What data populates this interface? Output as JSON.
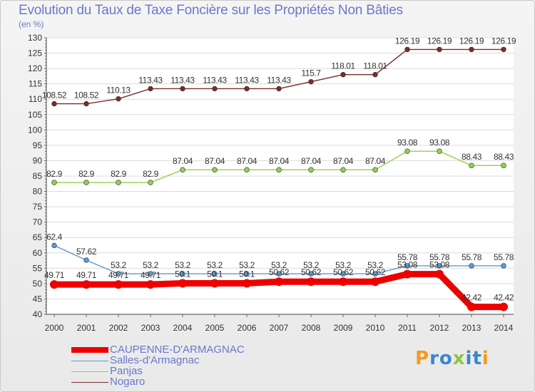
{
  "header": {
    "title": "Evolution du Taux de Taxe Foncière sur les Propriétés Non Bâties",
    "unit": "(en %)"
  },
  "logo": {
    "text": "Proxiti"
  },
  "chart_data": {
    "type": "line",
    "title": "Evolution du Taux de Taxe Foncière sur les Propriétés Non Bâties",
    "ylabel": "(en %)",
    "xlabel": "",
    "ylim": [
      40,
      130
    ],
    "ytick_step": 5,
    "x": [
      "2000",
      "2001",
      "2002",
      "2003",
      "2004",
      "2005",
      "2006",
      "2007",
      "2008",
      "2009",
      "2010",
      "2011",
      "2012",
      "2013",
      "2014"
    ],
    "series": [
      {
        "name": "CAUPENNE-D'ARMAGNAC",
        "color": "#ee0000",
        "values": [
          49.71,
          49.71,
          49.71,
          49.71,
          50.1,
          50.1,
          50.1,
          50.62,
          50.62,
          50.62,
          50.62,
          53.08,
          53.08,
          42.42,
          42.42
        ],
        "labels": [
          "49.71",
          "49.71",
          "49.71",
          "49.71",
          "50.1",
          "50.1",
          "50.1",
          "50.62",
          "50.62",
          "50.62",
          "50.62",
          "53.08",
          "53.08",
          "42.42",
          "42.42"
        ]
      },
      {
        "name": "Salles-d'Armagnac",
        "color": "#5b9bd5",
        "values": [
          62.4,
          57.62,
          53.2,
          53.2,
          53.2,
          53.2,
          53.2,
          53.2,
          53.2,
          53.2,
          53.2,
          55.78,
          55.78,
          55.78,
          55.78
        ],
        "labels": [
          "62.4",
          "57.62",
          "53.2",
          "53.2",
          "53.2",
          "53.2",
          "53.2",
          "53.2",
          "53.2",
          "53.2",
          "53.2",
          "55.78",
          "55.78",
          "55.78",
          "55.78"
        ]
      },
      {
        "name": "Panjas",
        "color": "#92d050",
        "values": [
          82.9,
          82.9,
          82.9,
          82.9,
          87.04,
          87.04,
          87.04,
          87.04,
          87.04,
          87.04,
          87.04,
          93.08,
          93.08,
          88.43,
          88.43
        ],
        "labels": [
          "82.9",
          "82.9",
          "82.9",
          "82.9",
          "87.04",
          "87.04",
          "87.04",
          "87.04",
          "87.04",
          "87.04",
          "87.04",
          "93.08",
          "93.08",
          "88.43",
          "88.43"
        ]
      },
      {
        "name": "Nogaro",
        "color": "#7b2b2b",
        "values": [
          108.52,
          108.52,
          110.13,
          113.43,
          113.43,
          113.43,
          113.43,
          113.43,
          115.7,
          118.01,
          118.01,
          126.19,
          126.19,
          126.19,
          126.19
        ],
        "labels": [
          "108.52",
          "108.52",
          "110.13",
          "113.43",
          "113.43",
          "113.43",
          "113.43",
          "113.43",
          "115.7",
          "118.01",
          "118.01",
          "126.19",
          "126.19",
          "126.19",
          "126.19"
        ]
      }
    ]
  }
}
